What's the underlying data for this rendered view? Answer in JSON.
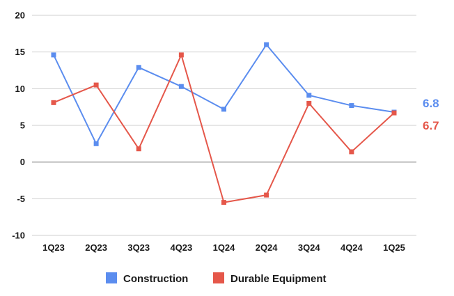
{
  "chart_data": {
    "type": "line",
    "title": "",
    "xlabel": "",
    "ylabel": "",
    "categories": [
      "1Q23",
      "2Q23",
      "3Q23",
      "4Q23",
      "1Q24",
      "2Q24",
      "3Q24",
      "4Q24",
      "1Q25"
    ],
    "ylim": [
      -10,
      20
    ],
    "yticks": [
      "-10",
      "-5",
      "0",
      "5",
      "10",
      "15",
      "20"
    ],
    "grid": true,
    "legend_position": "bottom",
    "series": [
      {
        "name": "Construction",
        "color": "#5b8def",
        "values": [
          14.6,
          2.5,
          12.9,
          10.3,
          7.2,
          16.0,
          9.1,
          7.7,
          6.8
        ],
        "end_label": "6.8"
      },
      {
        "name": "Durable Equipment",
        "color": "#e5574a",
        "values": [
          8.1,
          10.5,
          1.8,
          14.6,
          -5.5,
          -4.5,
          8.0,
          1.4,
          6.7
        ],
        "end_label": "6.7"
      }
    ]
  }
}
